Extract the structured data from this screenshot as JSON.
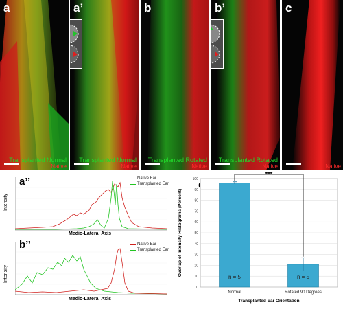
{
  "panels": [
    {
      "id": "a",
      "label": "a",
      "caption_green": "Transplanted Normal",
      "caption_red": "Native"
    },
    {
      "id": "a_prime",
      "label": "a’",
      "caption_green": "Transplanted Normal",
      "caption_red": "Native"
    },
    {
      "id": "b",
      "label": "b",
      "caption_green": "Transplanted Rotated",
      "caption_red": "Native"
    },
    {
      "id": "b_prime",
      "label": "b’",
      "caption_green": "Transplanted Rotated",
      "caption_red": "Native"
    },
    {
      "id": "c",
      "label": "c",
      "caption_green": "",
      "caption_red": "Native"
    }
  ],
  "inset_markers": {
    "top": "1",
    "bottom": "2"
  },
  "profiles": [
    {
      "label": "a’’",
      "ylabel": "Intensity",
      "xlabel": "Medio-Lateral Axis",
      "legend": [
        {
          "name": "Native Ear",
          "color": "#d0221f"
        },
        {
          "name": "Transplanted Ear",
          "color": "#22c422"
        }
      ]
    },
    {
      "label": "b’’",
      "ylabel": "Intensity",
      "xlabel": "Medio-Lateral Axis",
      "legend": [
        {
          "name": "Native Ear",
          "color": "#d0221f"
        },
        {
          "name": "Transplanted Ear",
          "color": "#22c422"
        }
      ]
    }
  ],
  "colors": {
    "native": "#ff2020",
    "transplanted": "#22d02a",
    "bar": "#3ba9d0",
    "bar_edge": "#1f7fa3"
  },
  "chart_data": {
    "type": "bar",
    "label": "d",
    "categories": [
      "Normal",
      "Rotated 90 Degrees"
    ],
    "values": [
      96,
      21
    ],
    "errors": [
      1,
      6
    ],
    "n_labels": [
      "n = 5",
      "n = 5"
    ],
    "ylabel": "Overlap of Intensity Histograms (Percent)",
    "xlabel": "Transplanted Ear Orientation",
    "ylim": [
      0,
      100
    ],
    "yticks": [
      0,
      10,
      20,
      30,
      40,
      50,
      60,
      70,
      80,
      90,
      100
    ],
    "significance": "***"
  }
}
